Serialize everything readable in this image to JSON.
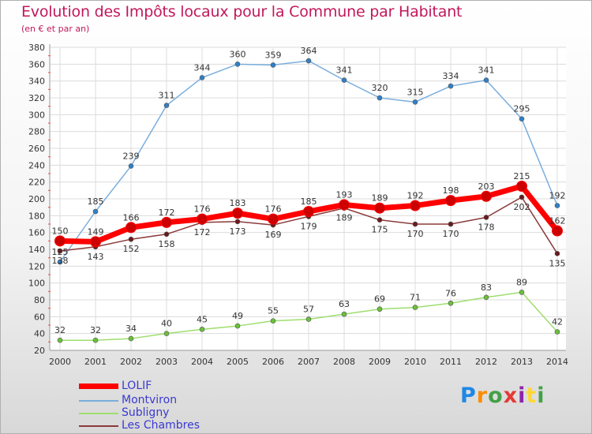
{
  "header": {
    "title": "Evolution des Impôts locaux pour la Commune par Habitant",
    "subtitle": "(en € et par an)"
  },
  "logo": {
    "text": "Proxiti",
    "colors": [
      "#1e88e5",
      "#fb8c00",
      "#43a047",
      "#e53935",
      "#8e24aa",
      "#fdd835",
      "#43a047"
    ]
  },
  "chart_data": {
    "type": "line",
    "title": "Evolution des Impôts locaux pour la Commune par Habitant",
    "subtitle": "(en € et par an)",
    "xlabel": "",
    "ylabel": "",
    "x": [
      "2000",
      "2001",
      "2002",
      "2003",
      "2004",
      "2005",
      "2006",
      "2007",
      "2008",
      "2009",
      "2010",
      "2011",
      "2012",
      "2013",
      "2014"
    ],
    "ylim": [
      20,
      380
    ],
    "yticks": [
      20,
      40,
      60,
      80,
      100,
      120,
      140,
      160,
      180,
      200,
      220,
      240,
      260,
      280,
      300,
      320,
      340,
      360,
      380
    ],
    "grid": true,
    "legend_position": "bottom-left",
    "series": [
      {
        "name": "LOLIF",
        "color": "#ff0000",
        "marker_color": "#cc0000",
        "thick": true,
        "label_pos": "above",
        "values": [
          150,
          149,
          166,
          172,
          176,
          183,
          176,
          185,
          193,
          189,
          192,
          198,
          203,
          215,
          162
        ]
      },
      {
        "name": "Montviron",
        "color": "#7aaedc",
        "marker_color": "#2f80c8",
        "thick": false,
        "label_pos": "above",
        "values": [
          125,
          185,
          239,
          311,
          344,
          360,
          359,
          364,
          341,
          320,
          315,
          334,
          341,
          295,
          192
        ]
      },
      {
        "name": "Subligny",
        "color": "#9ede6e",
        "marker_color": "#6ac03a",
        "thick": false,
        "label_pos": "above",
        "values": [
          32,
          32,
          34,
          40,
          45,
          49,
          55,
          57,
          63,
          69,
          71,
          76,
          83,
          89,
          42
        ]
      },
      {
        "name": "Les Chambres",
        "color": "#8b3a3a",
        "marker_color": "#6b1a1a",
        "thick": false,
        "label_pos": "below",
        "values": [
          138,
          143,
          152,
          158,
          172,
          173,
          169,
          179,
          189,
          175,
          170,
          170,
          178,
          202,
          135
        ]
      }
    ]
  }
}
